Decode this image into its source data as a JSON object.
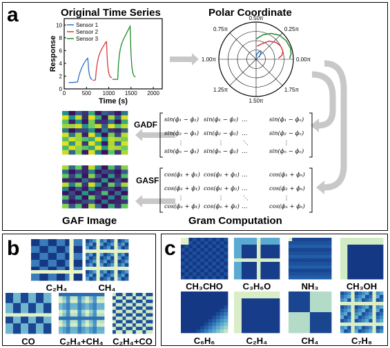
{
  "panel_a": {
    "label": "a",
    "ts_title": "Original Time Series",
    "polar_title": "Polar Coordinate",
    "gaf_title": "GAF Image",
    "gram_title": "Gram Computation",
    "gadf_label": "GADF",
    "gasf_label": "GASF",
    "ts_xlabel": "Time (s)",
    "ts_ylabel": "Response",
    "ts_xticks": [
      "0",
      "500",
      "1000",
      "1500",
      "2000"
    ],
    "ts_yticks": [
      "10",
      "8",
      "6",
      "4",
      "2",
      "0"
    ],
    "legend": [
      "Sensor 1",
      "Sensor 2",
      "Sensor 3"
    ],
    "polar_ticks": {
      "top": "0.50π",
      "ul": "0.75π",
      "ur": "0.25π",
      "left": "1.00π",
      "right": "0.00π",
      "ll": "1.25π",
      "lr": "1.75π",
      "bottom": "1.50π"
    },
    "gadf_rows": [
      [
        "sin(ϕ₁ − ϕ₁)",
        "sin(ϕ₁ − ϕ₂)",
        "…",
        "sin(ϕ₁ − ϕₙ)"
      ],
      [
        "sin(ϕ₂ − ϕ₁)",
        "sin(ϕ₂ − ϕ₂)",
        "…",
        "sin(ϕ₂ − ϕₙ)"
      ],
      [
        "sin(ϕₙ − ϕ₁)",
        "sin(ϕₙ − ϕ₂)",
        "…",
        "sin(ϕₙ − ϕₙ)"
      ]
    ],
    "gasf_rows": [
      [
        "cos(ϕ₁ + ϕ₁)",
        "cos(ϕ₁ + ϕ₂)",
        "…",
        "cos(ϕ₁ + ϕₙ)"
      ],
      [
        "cos(ϕ₂ + ϕ₁)",
        "cos(ϕ₂ + ϕ₂)",
        "…",
        "cos(ϕ₂ + ϕₙ)"
      ],
      [
        "cos(ϕₙ + ϕ₁)",
        "cos(ϕₙ + ϕ₂)",
        "…",
        "cos(ϕₙ + ϕₙ)"
      ]
    ],
    "vdots": "⋮",
    "ddots": "⋱"
  },
  "panel_b": {
    "label": "b",
    "items": [
      "C₂H₄",
      "CH₄",
      "CO",
      "C₂H₄+CH₄",
      "C₂H₄+CO"
    ]
  },
  "panel_c": {
    "label": "c",
    "items": [
      "CH₃CHO",
      "C₃H₆O",
      "NH₃",
      "CH₃OH",
      "C₆H₆",
      "C₂H₄",
      "CH₄",
      "C₇H₈"
    ]
  },
  "colors": {
    "sensor1": "#2a6fc0",
    "sensor2": "#d9363a",
    "sensor3": "#1f8a2e",
    "arrow": "#c8c8c8",
    "gaf_dark": "#3b0f5c",
    "gaf_mid": "#21918c",
    "gaf_light": "#e4e11b",
    "gas_dark": "#0d1f6e",
    "gas_light": "#f3f7c8"
  }
}
